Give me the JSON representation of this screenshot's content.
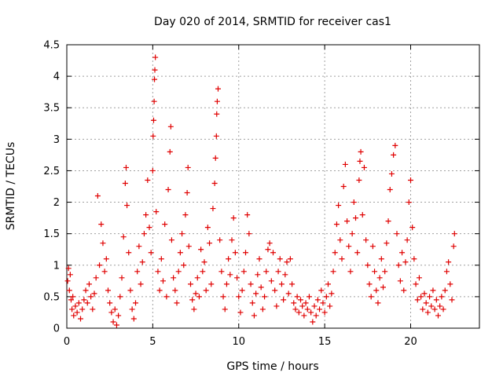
{
  "chart_data": {
    "type": "scatter",
    "title": "Day 020 of 2014, SRMTID for receiver cas1",
    "xlabel": "GPS time / hours",
    "ylabel": "SRMTID / TECUs",
    "xlim": [
      0,
      24
    ],
    "ylim": [
      0,
      4.5
    ],
    "grid": true,
    "marker": "+",
    "x_ticks": [
      0,
      5,
      10,
      15,
      20
    ],
    "y_ticks": [
      0,
      0.5,
      1,
      1.5,
      2,
      2.5,
      3,
      3.5,
      4,
      4.5
    ],
    "x_tick_labels": [
      "0",
      "5",
      "10",
      "15",
      "20"
    ],
    "y_tick_labels": [
      "0",
      "0.5",
      "1",
      "1.5",
      "2",
      "2.5",
      "3",
      "3.5",
      "4",
      "4.5"
    ],
    "series": [
      {
        "name": "SRMTID",
        "color": "#e00000",
        "points": [
          [
            0.05,
            0.75
          ],
          [
            0.1,
            0.95
          ],
          [
            0.15,
            0.6
          ],
          [
            0.2,
            0.85
          ],
          [
            0.25,
            0.45
          ],
          [
            0.3,
            0.3
          ],
          [
            0.35,
            0.5
          ],
          [
            0.4,
            0.2
          ],
          [
            0.5,
            0.35
          ],
          [
            0.6,
            0.25
          ],
          [
            0.7,
            0.4
          ],
          [
            0.8,
            0.15
          ],
          [
            0.9,
            0.3
          ],
          [
            1.0,
            0.45
          ],
          [
            1.1,
            0.6
          ],
          [
            1.2,
            0.4
          ],
          [
            1.3,
            0.7
          ],
          [
            1.4,
            0.5
          ],
          [
            1.5,
            0.3
          ],
          [
            1.6,
            0.55
          ],
          [
            1.7,
            0.8
          ],
          [
            1.8,
            2.1
          ],
          [
            1.9,
            1.0
          ],
          [
            2.0,
            1.65
          ],
          [
            2.1,
            1.35
          ],
          [
            2.2,
            0.9
          ],
          [
            2.3,
            1.1
          ],
          [
            2.4,
            0.6
          ],
          [
            2.5,
            0.4
          ],
          [
            2.6,
            0.25
          ],
          [
            2.7,
            0.1
          ],
          [
            2.8,
            0.3
          ],
          [
            2.9,
            0.05
          ],
          [
            3.0,
            0.2
          ],
          [
            3.1,
            0.5
          ],
          [
            3.2,
            0.8
          ],
          [
            3.3,
            1.45
          ],
          [
            3.4,
            2.3
          ],
          [
            3.45,
            2.55
          ],
          [
            3.5,
            1.95
          ],
          [
            3.6,
            1.2
          ],
          [
            3.7,
            0.6
          ],
          [
            3.8,
            0.3
          ],
          [
            3.9,
            0.15
          ],
          [
            4.0,
            0.4
          ],
          [
            4.1,
            0.9
          ],
          [
            4.2,
            1.3
          ],
          [
            4.3,
            0.7
          ],
          [
            4.4,
            1.05
          ],
          [
            4.5,
            1.5
          ],
          [
            4.6,
            1.8
          ],
          [
            4.7,
            2.35
          ],
          [
            4.8,
            1.6
          ],
          [
            4.9,
            1.2
          ],
          [
            5.0,
            2.5
          ],
          [
            5.02,
            3.05
          ],
          [
            5.05,
            3.3
          ],
          [
            5.08,
            3.6
          ],
          [
            5.1,
            3.95
          ],
          [
            5.12,
            4.1
          ],
          [
            5.15,
            4.3
          ],
          [
            5.2,
            1.85
          ],
          [
            5.3,
            0.9
          ],
          [
            5.4,
            0.6
          ],
          [
            5.5,
            1.1
          ],
          [
            5.6,
            0.75
          ],
          [
            5.7,
            1.65
          ],
          [
            5.8,
            0.5
          ],
          [
            5.9,
            2.2
          ],
          [
            6.0,
            2.8
          ],
          [
            6.05,
            3.2
          ],
          [
            6.1,
            1.4
          ],
          [
            6.2,
            0.8
          ],
          [
            6.3,
            0.6
          ],
          [
            6.4,
            0.4
          ],
          [
            6.5,
            0.9
          ],
          [
            6.6,
            1.2
          ],
          [
            6.7,
            1.5
          ],
          [
            6.8,
            1.0
          ],
          [
            6.9,
            1.8
          ],
          [
            7.0,
            2.15
          ],
          [
            7.05,
            2.55
          ],
          [
            7.1,
            1.3
          ],
          [
            7.2,
            0.7
          ],
          [
            7.3,
            0.45
          ],
          [
            7.4,
            0.3
          ],
          [
            7.5,
            0.55
          ],
          [
            7.6,
            0.8
          ],
          [
            7.7,
            0.5
          ],
          [
            7.8,
            1.25
          ],
          [
            7.9,
            0.9
          ],
          [
            8.0,
            1.05
          ],
          [
            8.1,
            0.6
          ],
          [
            8.2,
            1.6
          ],
          [
            8.3,
            1.35
          ],
          [
            8.4,
            0.7
          ],
          [
            8.5,
            1.9
          ],
          [
            8.6,
            2.3
          ],
          [
            8.65,
            2.7
          ],
          [
            8.7,
            3.05
          ],
          [
            8.72,
            3.4
          ],
          [
            8.75,
            3.6
          ],
          [
            8.8,
            3.8
          ],
          [
            8.9,
            1.4
          ],
          [
            9.0,
            0.9
          ],
          [
            9.1,
            0.5
          ],
          [
            9.2,
            0.3
          ],
          [
            9.3,
            0.7
          ],
          [
            9.4,
            1.1
          ],
          [
            9.5,
            0.85
          ],
          [
            9.6,
            1.4
          ],
          [
            9.7,
            1.75
          ],
          [
            9.8,
            1.2
          ],
          [
            9.9,
            0.8
          ],
          [
            10.0,
            0.5
          ],
          [
            10.1,
            0.25
          ],
          [
            10.2,
            0.6
          ],
          [
            10.3,
            0.9
          ],
          [
            10.4,
            1.2
          ],
          [
            10.5,
            1.8
          ],
          [
            10.6,
            1.5
          ],
          [
            10.7,
            0.7
          ],
          [
            10.8,
            0.4
          ],
          [
            10.9,
            0.2
          ],
          [
            11.0,
            0.55
          ],
          [
            11.1,
            0.85
          ],
          [
            11.2,
            1.1
          ],
          [
            11.3,
            0.65
          ],
          [
            11.4,
            0.3
          ],
          [
            11.5,
            0.5
          ],
          [
            11.6,
            0.9
          ],
          [
            11.7,
            1.25
          ],
          [
            11.8,
            1.35
          ],
          [
            11.9,
            0.75
          ],
          [
            12.0,
            1.2
          ],
          [
            12.1,
            0.6
          ],
          [
            12.2,
            0.35
          ],
          [
            12.3,
            0.9
          ],
          [
            12.4,
            1.1
          ],
          [
            12.5,
            0.7
          ],
          [
            12.6,
            0.45
          ],
          [
            12.7,
            0.85
          ],
          [
            12.8,
            1.05
          ],
          [
            12.9,
            0.55
          ],
          [
            13.0,
            1.1
          ],
          [
            13.1,
            0.7
          ],
          [
            13.2,
            0.4
          ],
          [
            13.3,
            0.3
          ],
          [
            13.4,
            0.5
          ],
          [
            13.5,
            0.25
          ],
          [
            13.6,
            0.45
          ],
          [
            13.7,
            0.35
          ],
          [
            13.8,
            0.2
          ],
          [
            13.9,
            0.4
          ],
          [
            14.0,
            0.3
          ],
          [
            14.1,
            0.5
          ],
          [
            14.2,
            0.25
          ],
          [
            14.3,
            0.1
          ],
          [
            14.4,
            0.35
          ],
          [
            14.5,
            0.2
          ],
          [
            14.6,
            0.45
          ],
          [
            14.7,
            0.3
          ],
          [
            14.8,
            0.6
          ],
          [
            14.9,
            0.4
          ],
          [
            15.0,
            0.25
          ],
          [
            15.1,
            0.5
          ],
          [
            15.2,
            0.7
          ],
          [
            15.3,
            0.35
          ],
          [
            15.4,
            0.55
          ],
          [
            15.5,
            0.9
          ],
          [
            15.6,
            1.2
          ],
          [
            15.7,
            1.65
          ],
          [
            15.8,
            1.95
          ],
          [
            15.9,
            1.4
          ],
          [
            16.0,
            1.1
          ],
          [
            16.1,
            2.25
          ],
          [
            16.2,
            2.6
          ],
          [
            16.3,
            1.7
          ],
          [
            16.4,
            1.3
          ],
          [
            16.5,
            0.9
          ],
          [
            16.6,
            1.5
          ],
          [
            16.7,
            2.0
          ],
          [
            16.8,
            1.75
          ],
          [
            16.9,
            1.2
          ],
          [
            17.0,
            2.35
          ],
          [
            17.05,
            2.65
          ],
          [
            17.1,
            2.8
          ],
          [
            17.2,
            1.8
          ],
          [
            17.3,
            2.55
          ],
          [
            17.4,
            1.4
          ],
          [
            17.5,
            1.0
          ],
          [
            17.6,
            0.7
          ],
          [
            17.7,
            0.5
          ],
          [
            17.8,
            1.3
          ],
          [
            17.9,
            0.9
          ],
          [
            18.0,
            0.6
          ],
          [
            18.1,
            0.4
          ],
          [
            18.2,
            0.8
          ],
          [
            18.3,
            1.1
          ],
          [
            18.4,
            0.65
          ],
          [
            18.5,
            0.9
          ],
          [
            18.6,
            1.35
          ],
          [
            18.7,
            1.7
          ],
          [
            18.8,
            2.2
          ],
          [
            18.9,
            2.45
          ],
          [
            19.0,
            2.75
          ],
          [
            19.1,
            2.9
          ],
          [
            19.2,
            1.5
          ],
          [
            19.3,
            1.0
          ],
          [
            19.4,
            0.75
          ],
          [
            19.5,
            1.2
          ],
          [
            19.6,
            0.6
          ],
          [
            19.7,
            1.05
          ],
          [
            19.8,
            1.4
          ],
          [
            19.9,
            2.0
          ],
          [
            20.0,
            2.35
          ],
          [
            20.1,
            1.6
          ],
          [
            20.2,
            1.1
          ],
          [
            20.3,
            0.7
          ],
          [
            20.4,
            0.45
          ],
          [
            20.5,
            0.8
          ],
          [
            20.6,
            0.5
          ],
          [
            20.7,
            0.3
          ],
          [
            20.8,
            0.55
          ],
          [
            20.9,
            0.4
          ],
          [
            21.0,
            0.25
          ],
          [
            21.1,
            0.5
          ],
          [
            21.2,
            0.35
          ],
          [
            21.3,
            0.6
          ],
          [
            21.4,
            0.3
          ],
          [
            21.5,
            0.45
          ],
          [
            21.6,
            0.2
          ],
          [
            21.7,
            0.35
          ],
          [
            21.8,
            0.5
          ],
          [
            21.9,
            0.3
          ],
          [
            22.0,
            0.6
          ],
          [
            22.1,
            0.9
          ],
          [
            22.2,
            1.05
          ],
          [
            22.3,
            0.7
          ],
          [
            22.4,
            0.45
          ],
          [
            22.5,
            1.3
          ],
          [
            22.55,
            1.5
          ]
        ]
      }
    ]
  }
}
